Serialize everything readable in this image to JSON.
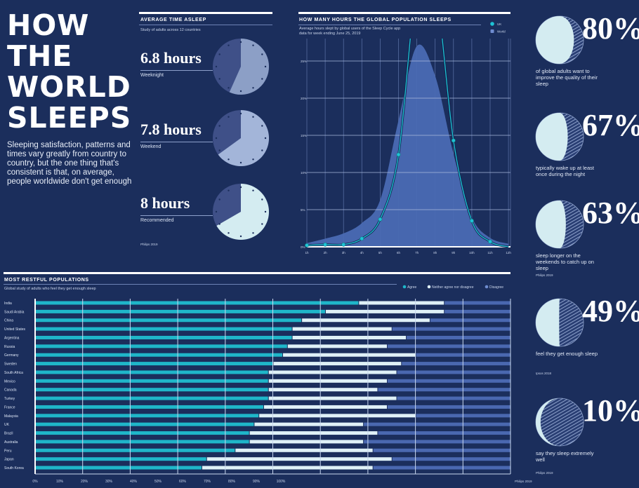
{
  "header": {
    "title_lines": [
      "HOW",
      "THE",
      "WORLD",
      "SLEEPS"
    ],
    "description": "Sleeping satisfaction, patterns and times vary greatly from country to country, but the one thing that's consistent is that, on average, people worldwide don't get enough"
  },
  "colors": {
    "background": "#1b2e5c",
    "agree": "#1fb6c9",
    "neither": "#dff1f7",
    "disagree": "#4a68b0",
    "world_area": "#4a6ab3",
    "uk_line": "#1ec3d6",
    "clock_dark": "#3f5088",
    "moon_light": "#d4ecf1"
  },
  "average_time": {
    "title": "AVERAGE TIME ASLEEP",
    "subtitle": "Study of adults across 12 countries",
    "source": "Philips 2019",
    "items": [
      {
        "value": "6.8 hours",
        "hours": 6.8,
        "label": "Weeknight",
        "color": "#8c9fc6"
      },
      {
        "value": "7.8 hours",
        "hours": 7.8,
        "label": "Weekend",
        "color": "#a3b5d9"
      },
      {
        "value": "8 hours",
        "hours": 8,
        "label": "Recommended",
        "color": "#d4ecf1"
      }
    ]
  },
  "right_stats": [
    {
      "value": "80%",
      "fraction": 0.8,
      "text": "of global adults want to improve the quality of their sleep",
      "source": ""
    },
    {
      "value": "67%",
      "fraction": 0.67,
      "text": "typically wake up at least once during the night",
      "source": ""
    },
    {
      "value": "63%",
      "fraction": 0.63,
      "text": "sleep longer on the weekends to catch up on sleep",
      "source": "Philips 2019"
    },
    {
      "value": "49%",
      "fraction": 0.49,
      "text": "feel they get enough sleep",
      "source": "Ipsos 2018"
    },
    {
      "value": "10%",
      "fraction": 0.1,
      "text": "say they sleep extremely well",
      "source": "Philips 2019"
    }
  ],
  "chart_data": [
    {
      "type": "area",
      "title": "HOW MANY HOURS THE GLOBAL POPULATION SLEEPS",
      "subtitle_lines": [
        "Average hours slept by global users of the Sleep Cycle app",
        "data for week ending June 25, 2019"
      ],
      "x": [
        "1h",
        "2h",
        "3h",
        "4h",
        "5h",
        "6h",
        "7h",
        "8h",
        "9h",
        "10h",
        "11h",
        "12h"
      ],
      "y_ticks": [
        "0%",
        "5%",
        "10%",
        "15%",
        "20%",
        "25%"
      ],
      "ylim": [
        0,
        28
      ],
      "grid": true,
      "legend_position": "top-right",
      "series": [
        {
          "name": "UK",
          "style": "line-with-markers",
          "values": [
            0.2,
            0.3,
            0.3,
            1.1,
            3.7,
            12.4,
            null,
            null,
            14.3,
            3.5,
            0.7,
            0.0
          ]
        },
        {
          "name": "World",
          "style": "area",
          "values": [
            0.5,
            1.1,
            1.8,
            3.2,
            6.3,
            17,
            27,
            23,
            12.5,
            4,
            1.2,
            0.4
          ]
        }
      ]
    },
    {
      "type": "bar",
      "orientation": "horizontal-stacked",
      "title": "MOST RESTFUL POPULATIONS",
      "subtitle": "Global study of adults who feel they get enough sleep",
      "legend_position": "top-right",
      "x_ticks": [
        "0%",
        "10%",
        "20%",
        "30%",
        "40%",
        "50%",
        "60%",
        "70%",
        "80%",
        "90%",
        "100%"
      ],
      "xlim": [
        0,
        100
      ],
      "grid": true,
      "categories": [
        "India",
        "Saudi Arabia",
        "China",
        "United States",
        "Argentina",
        "Russia",
        "Germany",
        "Sweden",
        "South Africa",
        "Mexico",
        "Canada",
        "Turkey",
        "France",
        "Malaysia",
        "UK",
        "Brazil",
        "Australia",
        "Peru",
        "Japan",
        "South Korea"
      ],
      "series": [
        {
          "name": "Agree",
          "values": [
            68,
            61,
            56,
            54,
            54,
            53,
            52,
            50,
            49,
            49,
            49,
            49,
            48,
            47,
            46,
            45,
            45,
            42,
            36,
            35
          ]
        },
        {
          "name": "Neither agree nor disagree",
          "values": [
            18,
            25,
            27,
            21,
            24,
            21,
            28,
            27,
            27,
            25,
            23,
            27,
            26,
            33,
            23,
            27,
            24,
            29,
            39,
            36
          ]
        },
        {
          "name": "Disagree",
          "values": [
            14,
            14,
            17,
            25,
            22,
            26,
            20,
            23,
            24,
            26,
            28,
            24,
            26,
            20,
            31,
            28,
            31,
            29,
            25,
            29
          ]
        }
      ],
      "source": "Philips 2019"
    }
  ]
}
